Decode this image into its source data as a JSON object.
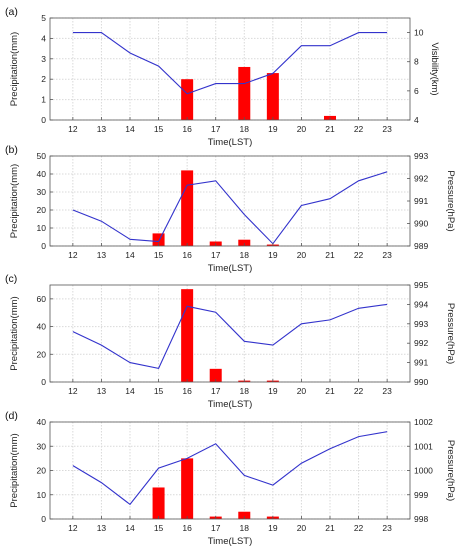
{
  "chart_data": [
    {
      "type": "bar+line",
      "panel_label": "(a)",
      "xlabel": "Time(LST)",
      "ylabel": "Precipitation(mm)",
      "y2label": "Visibility(km)",
      "x": [
        12,
        13,
        14,
        15,
        16,
        17,
        18,
        19,
        20,
        21,
        22,
        23
      ],
      "xticks": [
        12,
        13,
        14,
        15,
        16,
        17,
        18,
        19,
        20,
        21,
        22,
        23
      ],
      "ylim": [
        0,
        5
      ],
      "yticks": [
        0,
        1,
        2,
        3,
        4,
        5
      ],
      "y2lim": [
        4,
        11
      ],
      "y2ticks": [
        4,
        6,
        8,
        10
      ],
      "bars": {
        "name": "Precipitation",
        "color": "#ff0000",
        "x": [
          16,
          18,
          19,
          21
        ],
        "values": [
          2.0,
          2.6,
          2.3,
          0.2
        ]
      },
      "line": {
        "name": "Visibility",
        "color": "#3333cc",
        "values": [
          10,
          10,
          8.6,
          7.7,
          5.8,
          6.5,
          6.5,
          7.2,
          9.1,
          9.1,
          10,
          10
        ]
      }
    },
    {
      "type": "bar+line",
      "panel_label": "(b)",
      "xlabel": "Time(LST)",
      "ylabel": "Precipitation(mm)",
      "y2label": "Pressure(hPa)",
      "x": [
        12,
        13,
        14,
        15,
        16,
        17,
        18,
        19,
        20,
        21,
        22,
        23
      ],
      "xticks": [
        12,
        13,
        14,
        15,
        16,
        17,
        18,
        19,
        20,
        21,
        22,
        23
      ],
      "ylim": [
        0,
        50
      ],
      "yticks": [
        0,
        10,
        20,
        30,
        40,
        50
      ],
      "y2lim": [
        989,
        993
      ],
      "y2ticks": [
        989,
        990,
        991,
        992,
        993
      ],
      "bars": {
        "name": "Precipitation",
        "color": "#ff0000",
        "x": [
          15,
          16,
          17,
          18,
          19
        ],
        "values": [
          7,
          42,
          2.5,
          3.5,
          0.8
        ]
      },
      "line": {
        "name": "Pressure",
        "color": "#3333cc",
        "values": [
          990.6,
          990.1,
          989.3,
          989.2,
          991.7,
          991.9,
          990.4,
          989.1,
          990.8,
          991.1,
          991.9,
          992.3
        ]
      }
    },
    {
      "type": "bar+line",
      "panel_label": "(c)",
      "xlabel": "Time(LST)",
      "ylabel": "Precipitation(mm)",
      "y2label": "Pressure(hPa)",
      "x": [
        12,
        13,
        14,
        15,
        16,
        17,
        18,
        19,
        20,
        21,
        22,
        23
      ],
      "xticks": [
        12,
        13,
        14,
        15,
        16,
        17,
        18,
        19,
        20,
        21,
        22,
        23
      ],
      "ylim": [
        0,
        70
      ],
      "yticks": [
        0,
        20,
        40,
        60
      ],
      "y2lim": [
        990,
        995
      ],
      "y2ticks": [
        990,
        991,
        992,
        993,
        994,
        995
      ],
      "bars": {
        "name": "Precipitation",
        "color": "#ff0000",
        "x": [
          16,
          17,
          18,
          19
        ],
        "values": [
          67,
          9.5,
          1,
          1
        ]
      },
      "line": {
        "name": "Pressure",
        "color": "#3333cc",
        "values": [
          992.6,
          991.9,
          991.0,
          990.7,
          993.9,
          993.6,
          992.1,
          991.9,
          993.0,
          993.2,
          993.8,
          994.0
        ]
      }
    },
    {
      "type": "bar+line",
      "panel_label": "(d)",
      "xlabel": "Time(LST)",
      "ylabel": "Precipitation(mm)",
      "y2label": "Pressure(hPa)",
      "x": [
        12,
        13,
        14,
        15,
        16,
        17,
        18,
        19,
        20,
        21,
        22,
        23
      ],
      "xticks": [
        12,
        13,
        14,
        15,
        16,
        17,
        18,
        19,
        20,
        21,
        22,
        23
      ],
      "ylim": [
        0,
        40
      ],
      "yticks": [
        0,
        10,
        20,
        30,
        40
      ],
      "y2lim": [
        998,
        1002
      ],
      "y2ticks": [
        998,
        999,
        1000,
        1001,
        1002
      ],
      "bars": {
        "name": "Precipitation",
        "color": "#ff0000",
        "x": [
          15,
          16,
          17,
          18,
          19
        ],
        "values": [
          13,
          25,
          1,
          3,
          1
        ]
      },
      "line": {
        "name": "Pressure",
        "color": "#3333cc",
        "values": [
          1000.2,
          999.5,
          998.6,
          1000.1,
          1000.5,
          1001.1,
          999.8,
          999.4,
          1000.3,
          1000.9,
          1001.4,
          1001.6
        ]
      }
    }
  ]
}
